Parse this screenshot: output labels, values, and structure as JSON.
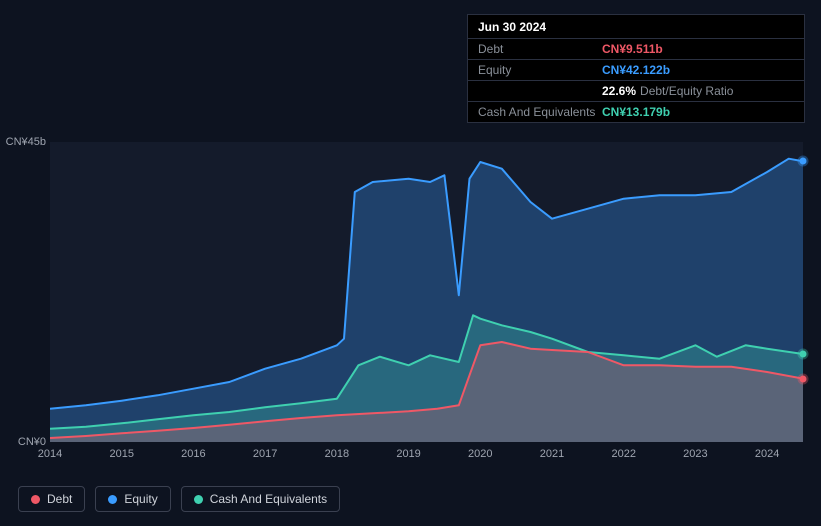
{
  "info_panel": {
    "title": "Jun 30 2024",
    "rows": [
      {
        "label": "Debt",
        "value": "CN¥9.511b",
        "cls": "debt"
      },
      {
        "label": "Equity",
        "value": "CN¥42.122b",
        "cls": "equity"
      },
      {
        "label": "",
        "ratio_pct": "22.6%",
        "ratio_label": "Debt/Equity Ratio"
      },
      {
        "label": "Cash And Equivalents",
        "value": "CN¥13.179b",
        "cls": "cash"
      }
    ]
  },
  "chart": {
    "type": "area",
    "background_color": "#141b2b",
    "page_background": "#0d1320",
    "y_axis": {
      "min": 0,
      "max": 45,
      "ticks": [
        {
          "v": 45,
          "label": "CN¥45b"
        },
        {
          "v": 0,
          "label": "CN¥0"
        }
      ],
      "label_color": "#9fa5b0",
      "label_fontsize": 11
    },
    "x_axis": {
      "min": 2014,
      "max": 2024.5,
      "ticks": [
        2014,
        2015,
        2016,
        2017,
        2018,
        2019,
        2020,
        2021,
        2022,
        2023,
        2024
      ],
      "label_color": "#9fa5b0",
      "label_fontsize": 11
    },
    "series": [
      {
        "name": "Equity",
        "color": "#3a9cff",
        "fill": "rgba(58,156,255,0.30)",
        "line_width": 2,
        "points": [
          [
            2014.0,
            5.0
          ],
          [
            2014.5,
            5.5
          ],
          [
            2015.0,
            6.2
          ],
          [
            2015.5,
            7.0
          ],
          [
            2016.0,
            8.0
          ],
          [
            2016.5,
            9.0
          ],
          [
            2017.0,
            11.0
          ],
          [
            2017.5,
            12.5
          ],
          [
            2018.0,
            14.5
          ],
          [
            2018.1,
            15.5
          ],
          [
            2018.25,
            37.5
          ],
          [
            2018.5,
            39.0
          ],
          [
            2019.0,
            39.5
          ],
          [
            2019.3,
            39.0
          ],
          [
            2019.5,
            40.0
          ],
          [
            2019.7,
            22.0
          ],
          [
            2019.85,
            39.5
          ],
          [
            2020.0,
            42.0
          ],
          [
            2020.3,
            41.0
          ],
          [
            2020.7,
            36.0
          ],
          [
            2021.0,
            33.5
          ],
          [
            2021.5,
            35.0
          ],
          [
            2022.0,
            36.5
          ],
          [
            2022.5,
            37.0
          ],
          [
            2023.0,
            37.0
          ],
          [
            2023.5,
            37.5
          ],
          [
            2024.0,
            40.5
          ],
          [
            2024.3,
            42.5
          ],
          [
            2024.5,
            42.1
          ]
        ]
      },
      {
        "name": "Cash And Equivalents",
        "color": "#3fd0b0",
        "fill": "rgba(63,208,176,0.28)",
        "line_width": 2,
        "points": [
          [
            2014.0,
            2.0
          ],
          [
            2014.5,
            2.3
          ],
          [
            2015.0,
            2.8
          ],
          [
            2015.5,
            3.4
          ],
          [
            2016.0,
            4.0
          ],
          [
            2016.5,
            4.5
          ],
          [
            2017.0,
            5.2
          ],
          [
            2017.5,
            5.8
          ],
          [
            2018.0,
            6.5
          ],
          [
            2018.3,
            11.5
          ],
          [
            2018.6,
            12.8
          ],
          [
            2019.0,
            11.5
          ],
          [
            2019.3,
            13.0
          ],
          [
            2019.7,
            12.0
          ],
          [
            2019.9,
            19.0
          ],
          [
            2020.0,
            18.5
          ],
          [
            2020.3,
            17.5
          ],
          [
            2020.7,
            16.5
          ],
          [
            2021.0,
            15.5
          ],
          [
            2021.5,
            13.5
          ],
          [
            2022.0,
            13.0
          ],
          [
            2022.5,
            12.5
          ],
          [
            2023.0,
            14.5
          ],
          [
            2023.3,
            12.8
          ],
          [
            2023.7,
            14.5
          ],
          [
            2024.0,
            14.0
          ],
          [
            2024.5,
            13.2
          ]
        ]
      },
      {
        "name": "Debt",
        "color": "#ef5866",
        "fill": "rgba(239,88,102,0.25)",
        "line_width": 2,
        "points": [
          [
            2014.0,
            0.6
          ],
          [
            2014.5,
            0.9
          ],
          [
            2015.0,
            1.3
          ],
          [
            2015.5,
            1.7
          ],
          [
            2016.0,
            2.1
          ],
          [
            2016.5,
            2.6
          ],
          [
            2017.0,
            3.1
          ],
          [
            2017.5,
            3.6
          ],
          [
            2018.0,
            4.0
          ],
          [
            2018.5,
            4.3
          ],
          [
            2019.0,
            4.6
          ],
          [
            2019.4,
            5.0
          ],
          [
            2019.7,
            5.5
          ],
          [
            2019.85,
            10.0
          ],
          [
            2020.0,
            14.5
          ],
          [
            2020.3,
            15.0
          ],
          [
            2020.7,
            14.0
          ],
          [
            2021.0,
            13.8
          ],
          [
            2021.5,
            13.5
          ],
          [
            2022.0,
            11.5
          ],
          [
            2022.5,
            11.5
          ],
          [
            2023.0,
            11.3
          ],
          [
            2023.5,
            11.3
          ],
          [
            2024.0,
            10.5
          ],
          [
            2024.5,
            9.5
          ]
        ]
      }
    ],
    "legend": [
      {
        "label": "Debt",
        "color": "#ef5866"
      },
      {
        "label": "Equity",
        "color": "#3a9cff"
      },
      {
        "label": "Cash And Equivalents",
        "color": "#3fd0b0"
      }
    ]
  }
}
